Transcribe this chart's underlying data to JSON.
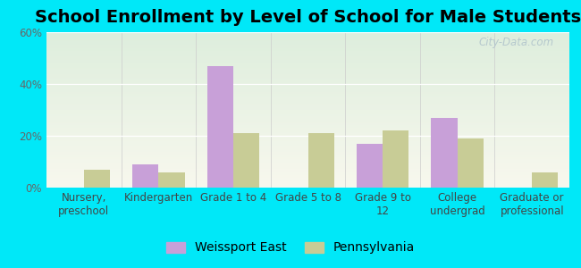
{
  "title": "School Enrollment by Level of School for Male Students",
  "categories": [
    "Nursery,\npreschool",
    "Kindergarten",
    "Grade 1 to 4",
    "Grade 5 to 8",
    "Grade 9 to\n12",
    "College\nundergrad",
    "Graduate or\nprofessional"
  ],
  "weissport_east": [
    0,
    9,
    47,
    0,
    17,
    27,
    0
  ],
  "pennsylvania": [
    7,
    6,
    21,
    21,
    22,
    19,
    6
  ],
  "bar_color_weissport": "#c8a0d8",
  "bar_color_pennsylvania": "#c8cc96",
  "background_color": "#00e8f8",
  "plot_bg_color_top": "#deeedd",
  "plot_bg_color_bottom": "#f8f8ee",
  "ylim": [
    0,
    60
  ],
  "yticks": [
    0,
    20,
    40,
    60
  ],
  "ytick_labels": [
    "0%",
    "20%",
    "40%",
    "60%"
  ],
  "legend_weissport": "Weissport East",
  "legend_pennsylvania": "Pennsylvania",
  "title_fontsize": 14,
  "tick_fontsize": 8.5,
  "legend_fontsize": 10,
  "watermark": "City-Data.com"
}
